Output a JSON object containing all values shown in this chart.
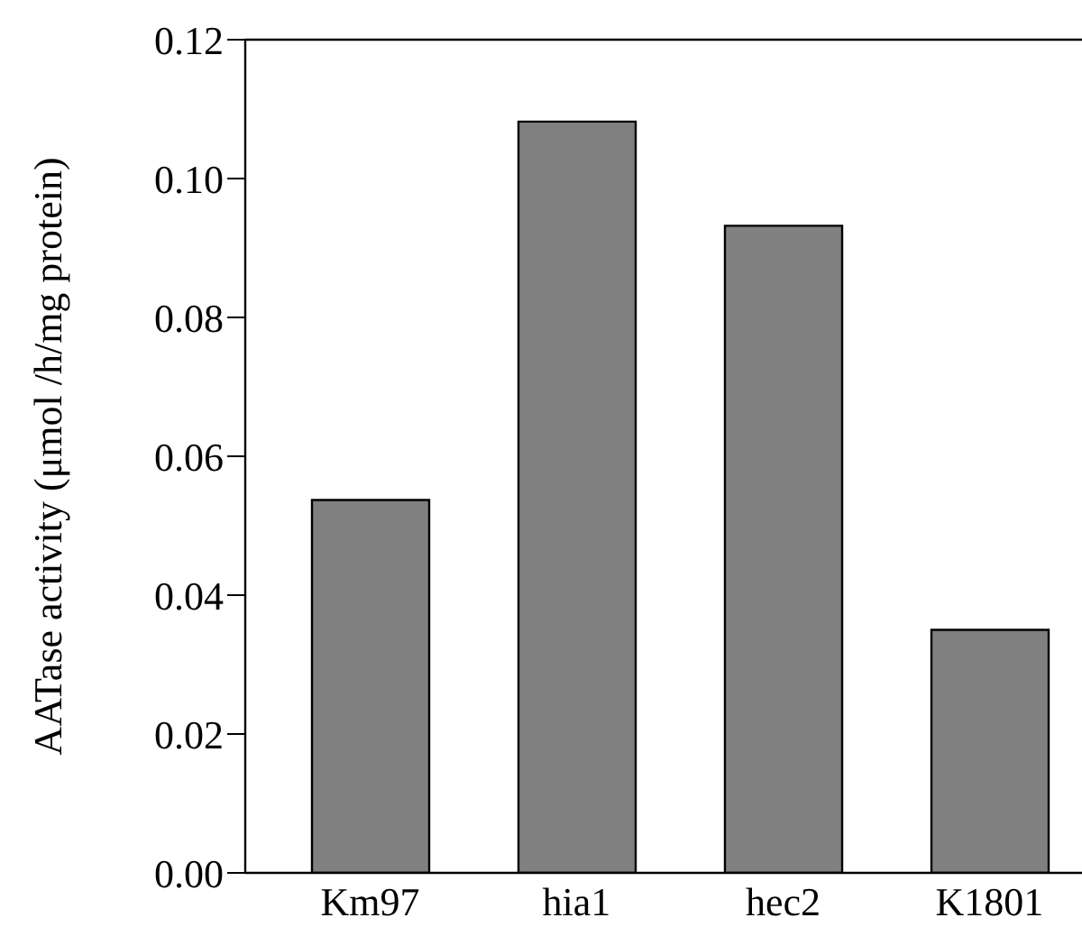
{
  "chart_data": {
    "type": "bar",
    "ylabel": "AATase activity (μmol /h/mg protein)",
    "categories": [
      "Km97",
      "hia1",
      "hec2",
      "K1801"
    ],
    "values": [
      0.0537,
      0.1082,
      0.0932,
      0.035
    ],
    "color": "#808080",
    "ylim": [
      0,
      0.12
    ],
    "yticks": [
      {
        "value": 0,
        "label": "0.00"
      },
      {
        "value": 0.02,
        "label": "0.02"
      },
      {
        "value": 0.04,
        "label": "0.04"
      },
      {
        "value": 0.06,
        "label": "0.06"
      },
      {
        "value": 0.08,
        "label": "0.08"
      },
      {
        "value": 0.1,
        "label": "0.10"
      },
      {
        "value": 0.12,
        "label": "0.12"
      }
    ],
    "grid": false
  }
}
